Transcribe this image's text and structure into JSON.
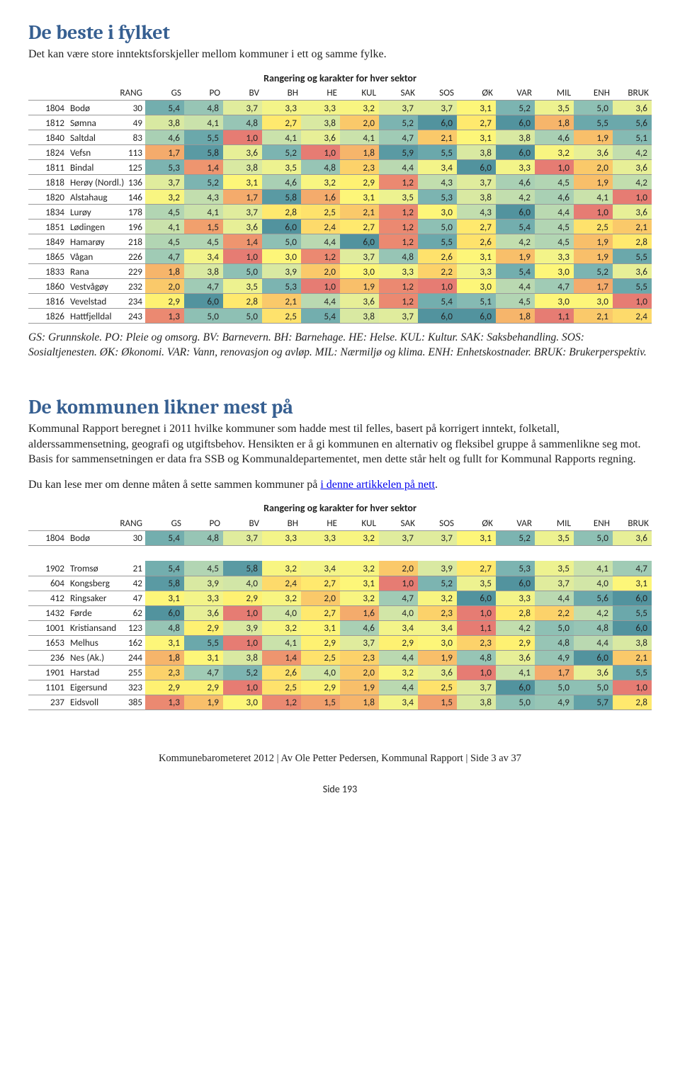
{
  "palette": {
    "1.0": "#e67c73",
    "1.1": "#e67c73",
    "1.2": "#eb8971",
    "1.3": "#eb8971",
    "1.4": "#ee956f",
    "1.5": "#f1a06d",
    "1.6": "#f4ab6c",
    "1.7": "#f4ab6c",
    "1.8": "#f6b56b",
    "1.9": "#f8bf6a",
    "2.0": "#fac96a",
    "2.1": "#fac96a",
    "2.2": "#fcd26a",
    "2.3": "#fcd26a",
    "2.4": "#fdda6b",
    "2.5": "#fee26c",
    "2.6": "#fee26c",
    "2.7": "#ffe96e",
    "2.8": "#ffe96e",
    "2.9": "#fef172",
    "3.0": "#fdf679",
    "3.1": "#fdf679",
    "3.2": "#f8f581",
    "3.3": "#f3f489",
    "3.4": "#f3f489",
    "3.5": "#edf290",
    "3.6": "#e7ef97",
    "3.7": "#e0ec9d",
    "3.8": "#d9e9a2",
    "3.9": "#d9e9a2",
    "4.0": "#d2e6a7",
    "4.1": "#cae2ab",
    "4.2": "#c2deae",
    "4.3": "#c2deae",
    "4.4": "#bad9b1",
    "4.5": "#b2d5b3",
    "4.6": "#a9d0b4",
    "4.7": "#a0cbb5",
    "4.8": "#97c5b5",
    "4.9": "#97c5b5",
    "5.0": "#8ec0b4",
    "5.1": "#85bab3",
    "5.2": "#7cb4b1",
    "5.3": "#7cb4b1",
    "5.4": "#73aeae",
    "5.5": "#6ba8ab",
    "5.6": "#6ba8ab",
    "5.7": "#62a1a7",
    "5.8": "#5a9aa3",
    "5.9": "#5a9aa3",
    "6.0": "#52939e"
  },
  "headers": [
    "RANG",
    "GS",
    "PO",
    "BV",
    "BH",
    "HE",
    "KUL",
    "SAK",
    "SOS",
    "ØK",
    "VAR",
    "MIL",
    "ENH",
    "BRUK"
  ],
  "title1": "De beste i fylket",
  "intro1": "Det kan være store inntektsforskjeller mellom kommuner i ett og samme fylke.",
  "caption": "Rangering og karakter for hver sektor",
  "table1": {
    "rows": [
      {
        "id": "1804",
        "n": "Bodø",
        "r": 30,
        "v": [
          "5,4",
          "4,8",
          "3,7",
          "3,3",
          "3,3",
          "3,2",
          "3,7",
          "3,7",
          "3,1",
          "5,2",
          "3,5",
          "5,0",
          "3,6"
        ]
      },
      {
        "id": "1812",
        "n": "Sømna",
        "r": 49,
        "v": [
          "3,8",
          "4,1",
          "4,8",
          "2,7",
          "3,8",
          "2,0",
          "5,2",
          "6,0",
          "2,7",
          "6,0",
          "1,8",
          "5,5",
          "5,6"
        ]
      },
      {
        "id": "1840",
        "n": "Saltdal",
        "r": 83,
        "v": [
          "4,6",
          "5,5",
          "1,0",
          "4,1",
          "3,6",
          "4,1",
          "4,7",
          "2,1",
          "3,1",
          "3,8",
          "4,6",
          "1,9",
          "5,1"
        ]
      },
      {
        "id": "1824",
        "n": "Vefsn",
        "r": 113,
        "v": [
          "1,7",
          "5,8",
          "3,6",
          "5,2",
          "1,0",
          "1,8",
          "5,9",
          "5,5",
          "3,8",
          "6,0",
          "3,2",
          "3,6",
          "4,2"
        ]
      },
      {
        "id": "1811",
        "n": "Bindal",
        "r": 125,
        "v": [
          "5,3",
          "1,4",
          "3,8",
          "3,5",
          "4,8",
          "2,3",
          "4,4",
          "3,4",
          "6,0",
          "3,3",
          "1,0",
          "2,0",
          "3,6"
        ]
      },
      {
        "id": "1818",
        "n": "Herøy (Nordl.)",
        "r": 136,
        "v": [
          "3,7",
          "5,2",
          "3,1",
          "4,6",
          "3,2",
          "2,9",
          "1,2",
          "4,3",
          "3,7",
          "4,6",
          "4,5",
          "1,9",
          "4,2"
        ]
      },
      {
        "id": "1820",
        "n": "Alstahaug",
        "r": 146,
        "v": [
          "3,2",
          "4,3",
          "1,7",
          "5,8",
          "1,6",
          "3,1",
          "3,5",
          "5,3",
          "3,8",
          "4,2",
          "4,6",
          "4,1",
          "1,0"
        ]
      },
      {
        "id": "1834",
        "n": "Lurøy",
        "r": 178,
        "v": [
          "4,5",
          "4,1",
          "3,7",
          "2,8",
          "2,5",
          "2,1",
          "1,2",
          "3,0",
          "4,3",
          "6,0",
          "4,4",
          "1,0",
          "3,6"
        ]
      },
      {
        "id": "1851",
        "n": "Lødingen",
        "r": 196,
        "v": [
          "4,1",
          "1,5",
          "3,6",
          "6,0",
          "2,4",
          "2,7",
          "1,2",
          "5,0",
          "2,7",
          "5,4",
          "4,5",
          "2,5",
          "2,1"
        ]
      },
      {
        "id": "1849",
        "n": "Hamarøy",
        "r": 218,
        "v": [
          "4,5",
          "4,5",
          "1,4",
          "5,0",
          "4,4",
          "6,0",
          "1,2",
          "5,5",
          "2,6",
          "4,2",
          "4,5",
          "1,9",
          "2,8"
        ]
      },
      {
        "id": "1865",
        "n": "Vågan",
        "r": 226,
        "v": [
          "4,7",
          "3,4",
          "1,0",
          "3,0",
          "1,2",
          "3,7",
          "4,8",
          "2,6",
          "3,1",
          "1,9",
          "3,3",
          "1,9",
          "5,5"
        ]
      },
      {
        "id": "1833",
        "n": "Rana",
        "r": 229,
        "v": [
          "1,8",
          "3,8",
          "5,0",
          "3,9",
          "2,0",
          "3,0",
          "3,3",
          "2,2",
          "3,3",
          "5,4",
          "3,0",
          "5,2",
          "3,6"
        ]
      },
      {
        "id": "1860",
        "n": "Vestvågøy",
        "r": 232,
        "v": [
          "2,0",
          "4,7",
          "3,5",
          "5,3",
          "1,0",
          "1,9",
          "1,2",
          "1,0",
          "3,0",
          "4,4",
          "4,7",
          "1,7",
          "5,5"
        ]
      },
      {
        "id": "1816",
        "n": "Vevelstad",
        "r": 234,
        "v": [
          "2,9",
          "6,0",
          "2,8",
          "2,1",
          "4,4",
          "3,6",
          "1,2",
          "5,4",
          "5,1",
          "4,5",
          "3,0",
          "3,0",
          "1,0"
        ]
      },
      {
        "id": "1826",
        "n": "Hattfjelldal",
        "r": 243,
        "v": [
          "1,3",
          "5,0",
          "5,0",
          "2,5",
          "5,4",
          "3,8",
          "3,7",
          "6,0",
          "6,0",
          "1,8",
          "1,1",
          "2,1",
          "2,4"
        ]
      }
    ]
  },
  "legend": "GS: Grunnskole. PO: Pleie og omsorg. BV: Barnevern. BH: Barnehage. HE: Helse. KUL: Kultur. SAK: Saksbehandling. SOS: Sosialtjenesten. ØK: Økonomi. VAR: Vann, renovasjon og avløp. MIL: Nærmiljø og klima. ENH: Enhetskostnader. BRUK: Brukerperspektiv.",
  "title2": "De kommunen likner mest på",
  "intro2": "Kommunal Rapport beregnet i 2011 hvilke kommuner som hadde mest til felles, basert på korrigert inntekt, folketall, alderssammensetning, geografi og utgiftsbehov. Hensikten er å gi kommunen en alternativ og fleksibel gruppe å sammenlikne seg mot. Basis for sammensetningen er data fra SSB og Kommunaldepartementet, men dette står helt og fullt for Kommunal Rapports regning.",
  "linkpara_pre": "Du kan lese mer om denne måten å sette sammen kommuner på ",
  "linktext": "i denne artikkelen på nett",
  "linkpara_post": ".",
  "table2": {
    "rows": [
      {
        "id": "1804",
        "n": "Bodø",
        "r": 30,
        "v": [
          "5,4",
          "4,8",
          "3,7",
          "3,3",
          "3,3",
          "3,2",
          "3,7",
          "3,7",
          "3,1",
          "5,2",
          "3,5",
          "5,0",
          "3,6"
        ]
      },
      {
        "spacer": true
      },
      {
        "id": "1902",
        "n": "Tromsø",
        "r": 21,
        "v": [
          "5,4",
          "4,5",
          "5,8",
          "3,2",
          "3,4",
          "3,2",
          "2,0",
          "3,9",
          "2,7",
          "5,3",
          "3,5",
          "4,1",
          "4,7"
        ]
      },
      {
        "id": "604",
        "n": "Kongsberg",
        "r": 42,
        "v": [
          "5,8",
          "3,9",
          "4,0",
          "2,4",
          "2,7",
          "3,1",
          "1,0",
          "5,2",
          "3,5",
          "6,0",
          "3,7",
          "4,0",
          "3,1"
        ]
      },
      {
        "id": "412",
        "n": "Ringsaker",
        "r": 47,
        "v": [
          "3,1",
          "3,3",
          "2,9",
          "3,2",
          "2,0",
          "3,2",
          "4,7",
          "3,2",
          "6,0",
          "3,3",
          "4,4",
          "5,6",
          "6,0"
        ]
      },
      {
        "id": "1432",
        "n": "Førde",
        "r": 62,
        "v": [
          "6,0",
          "3,6",
          "1,0",
          "4,0",
          "2,7",
          "1,6",
          "4,0",
          "2,3",
          "1,0",
          "2,8",
          "2,2",
          "4,2",
          "5,5"
        ]
      },
      {
        "id": "1001",
        "n": "Kristiansand",
        "r": 123,
        "v": [
          "4,8",
          "2,9",
          "3,9",
          "3,2",
          "3,1",
          "4,6",
          "3,4",
          "3,4",
          "1,1",
          "4,2",
          "5,0",
          "4,8",
          "6,0"
        ]
      },
      {
        "id": "1653",
        "n": "Melhus",
        "r": 162,
        "v": [
          "3,1",
          "5,5",
          "1,0",
          "4,1",
          "2,9",
          "3,7",
          "2,9",
          "3,0",
          "2,3",
          "2,9",
          "4,8",
          "4,4",
          "3,8"
        ]
      },
      {
        "id": "236",
        "n": "Nes (Ak.)",
        "r": 244,
        "v": [
          "1,8",
          "3,1",
          "3,8",
          "1,4",
          "2,5",
          "2,3",
          "4,4",
          "1,9",
          "4,8",
          "3,6",
          "4,9",
          "6,0",
          "2,1"
        ]
      },
      {
        "id": "1901",
        "n": "Harstad",
        "r": 255,
        "v": [
          "2,3",
          "4,7",
          "5,2",
          "2,6",
          "4,0",
          "2,0",
          "3,2",
          "3,6",
          "1,0",
          "4,1",
          "1,7",
          "3,6",
          "5,5"
        ]
      },
      {
        "id": "1101",
        "n": "Eigersund",
        "r": 323,
        "v": [
          "2,9",
          "2,9",
          "1,0",
          "2,5",
          "2,9",
          "1,9",
          "4,4",
          "2,5",
          "3,7",
          "6,0",
          "5,0",
          "5,0",
          "1,0"
        ]
      },
      {
        "id": "237",
        "n": "Eidsvoll",
        "r": 385,
        "v": [
          "1,3",
          "1,9",
          "3,0",
          "1,2",
          "1,5",
          "1,8",
          "3,4",
          "1,5",
          "3,8",
          "5,0",
          "4,9",
          "5,7",
          "2,8"
        ]
      }
    ]
  },
  "footer": "Kommunebarometeret 2012 | Av Ole Petter Pedersen, Kommunal Rapport | Side 3 av 37",
  "pagelabel": "Side 193"
}
